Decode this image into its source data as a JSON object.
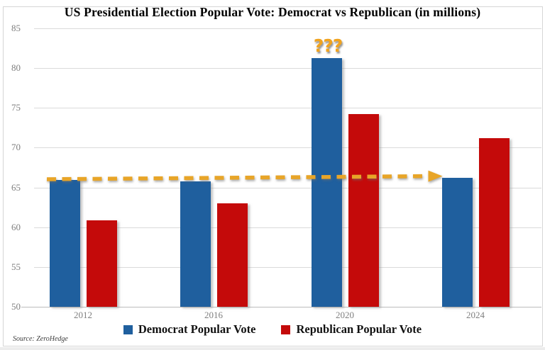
{
  "source": "Source: ZeroHedge",
  "colors": {
    "background": "#FFFFFF",
    "gridline": "#DADADA",
    "axis_label": "#7F7F7F",
    "frame_border": "#D6D6D6"
  },
  "chart_data": {
    "type": "bar",
    "title": "US Presidential Election Popular Vote: Democrat vs Republican (in millions)",
    "categories": [
      "2012",
      "2016",
      "2020",
      "2024"
    ],
    "series": [
      {
        "name": "Democrat Popular Vote",
        "color": "#1F5F9E",
        "values": [
          65.9,
          65.8,
          81.3,
          66.2
        ]
      },
      {
        "name": "Republican Popular Vote",
        "color": "#C40A0A",
        "values": [
          60.9,
          63.0,
          74.2,
          71.2
        ]
      }
    ],
    "xlabel": "",
    "ylabel": "",
    "ylim": [
      50,
      85
    ],
    "yticks": [
      50,
      55,
      60,
      65,
      70,
      75,
      80,
      85
    ],
    "grid": true,
    "legend_position": "bottom",
    "annotation": {
      "text": "???",
      "color": "#F0A31F",
      "position": "above 2020 Democrat bar"
    },
    "trend_arrow": {
      "style": "dashed",
      "color": "#E8A528",
      "from": {
        "category": "2012",
        "value": 65.9
      },
      "to": {
        "category": "2024",
        "value": 66.2
      }
    }
  }
}
